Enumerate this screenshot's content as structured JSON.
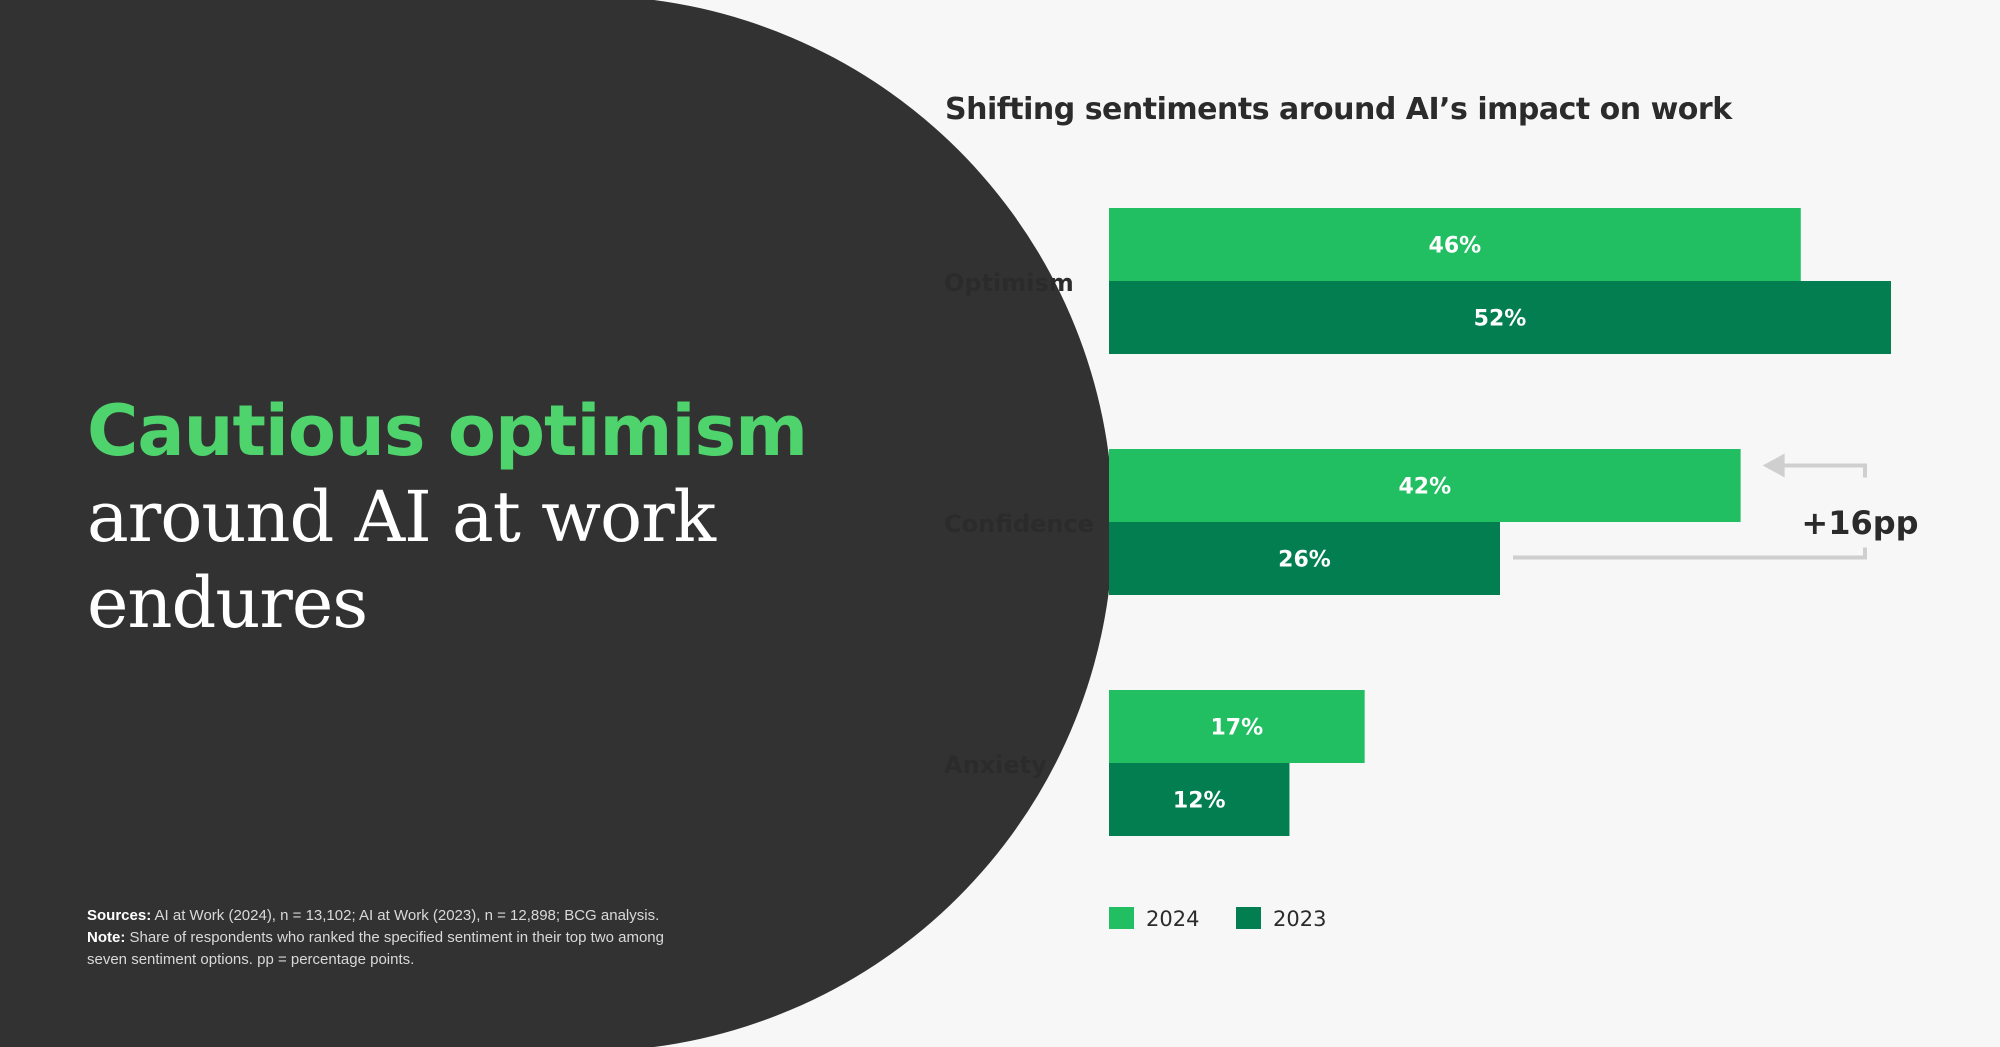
{
  "colors": {
    "panel": "#323232",
    "accent": "#4fd36d",
    "series_2024": "#22bf62",
    "series_2023": "#027e51",
    "arrow": "#cfcfcf"
  },
  "headline": {
    "accent_text": "Cautious optimism",
    "rest_text": "around AI at work endures"
  },
  "notes": {
    "sources_label": "Sources:",
    "sources_text": " AI at Work (2024), n = 13,102; AI at Work (2023), n = 12,898; BCG analysis.",
    "note_label": "Note:",
    "note_text": " Share of respondents who ranked the specified sentiment in their top two among seven sentiment options. pp = percentage points."
  },
  "annotation": {
    "label": "+16pp"
  },
  "chart_data": {
    "type": "bar",
    "orientation": "horizontal",
    "title": "Shifting sentiments around AI’s impact on work",
    "categories": [
      "Optimism",
      "Confidence",
      "Anxiety"
    ],
    "series": [
      {
        "name": "2024",
        "values": [
          46,
          42,
          17
        ],
        "labels": [
          "46%",
          "42%",
          "17%"
        ]
      },
      {
        "name": "2023",
        "values": [
          52,
          26,
          12
        ],
        "labels": [
          "52%",
          "26%",
          "12%"
        ]
      }
    ],
    "xlabel": "",
    "ylabel": "",
    "unit": "%",
    "xlim": [
      0,
      52
    ],
    "grid": false,
    "legend": "bottom-left"
  }
}
